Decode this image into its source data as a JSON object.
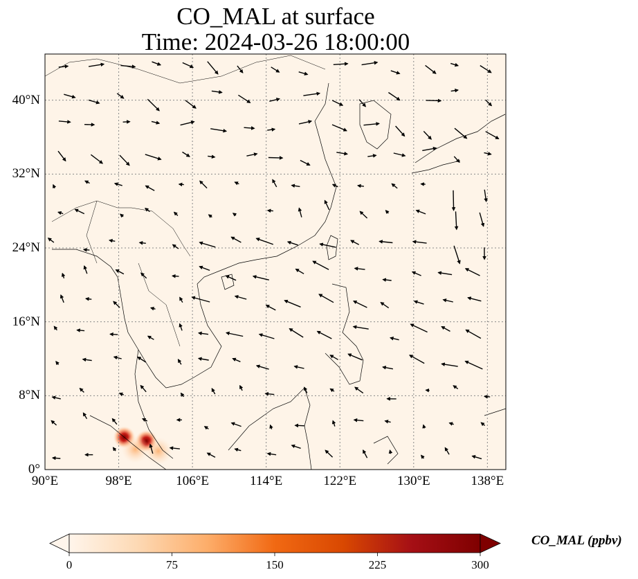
{
  "title": {
    "line1": "CO_MAL at surface",
    "line2": "Time: 2024-03-26 18:00:00"
  },
  "axes": {
    "lon_ticks": [
      "90°E",
      "98°E",
      "106°E",
      "114°E",
      "122°E",
      "130°E",
      "138°E"
    ],
    "lat_ticks": [
      "0°",
      "8°N",
      "16°N",
      "24°N",
      "32°N",
      "40°N"
    ],
    "lon_range": [
      90,
      140
    ],
    "lat_range": [
      0,
      45
    ],
    "gridlines": true
  },
  "colorbar": {
    "label": "CO_MAL (ppbv)",
    "ticks": [
      "0",
      "75",
      "150",
      "225",
      "300"
    ],
    "range": [
      0,
      300
    ],
    "colormap": [
      "#fff5eb",
      "#fdd9b4",
      "#fdae6b",
      "#f16913",
      "#d94801",
      "#a50f15",
      "#7f0000"
    ],
    "extend": "both"
  },
  "field": {
    "background_color": "#fef4e8",
    "hotspots": [
      {
        "lon": 98.6,
        "lat": 3.5,
        "value": 300
      },
      {
        "lon": 101.0,
        "lat": 3.1,
        "value": 300
      },
      {
        "lon": 99.8,
        "lat": 2.2,
        "value": 140
      },
      {
        "lon": 102.3,
        "lat": 2.0,
        "value": 110
      }
    ]
  }
}
